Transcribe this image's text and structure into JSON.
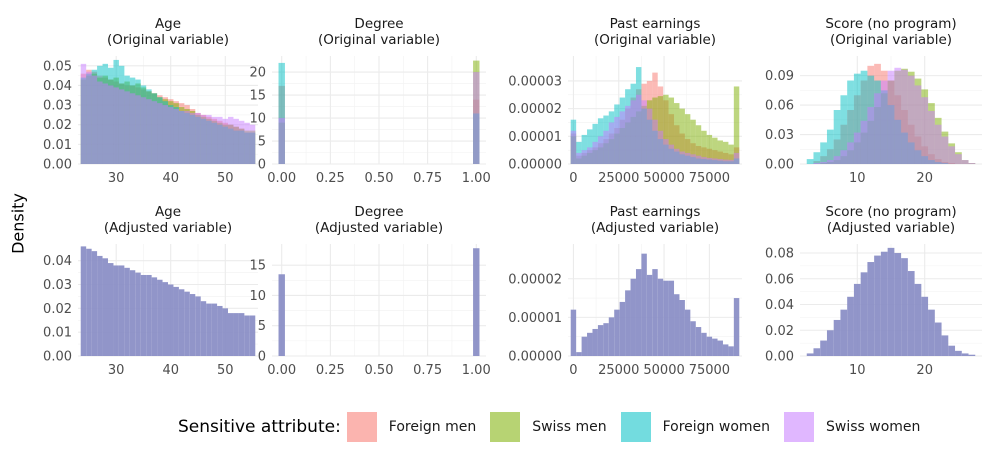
{
  "figure": {
    "ylabel": "Density",
    "legend": {
      "title": "Sensitive attribute:",
      "items": [
        {
          "label": "Foreign men",
          "color": "#F8766D"
        },
        {
          "label": "Swiss men",
          "color": "#7CAE00"
        },
        {
          "label": "Foreign women",
          "color": "#00BFC4"
        },
        {
          "label": "Swiss women",
          "color": "#C77CFF"
        }
      ]
    },
    "overlap_color": "#8B8FC6",
    "fill_opacity": 0.5
  },
  "chart_data": [
    {
      "type": "area",
      "title": "Age\n(Original variable)",
      "title_lines": [
        "Age",
        "(Original variable)"
      ],
      "xlim": [
        23,
        56
      ],
      "ylim": [
        0,
        0.055
      ],
      "xticks": [
        30,
        40,
        50
      ],
      "xtick_labels": [
        "30",
        "40",
        "50"
      ],
      "yticks": [
        0,
        0.01,
        0.02,
        0.03,
        0.04,
        0.05
      ],
      "ytick_labels": [
        "0.00",
        "0.01",
        "0.02",
        "0.03",
        "0.04",
        "0.05"
      ],
      "grid": true,
      "bins": [
        24,
        25,
        26,
        27,
        28,
        29,
        30,
        31,
        32,
        33,
        34,
        35,
        36,
        37,
        38,
        39,
        40,
        41,
        42,
        43,
        44,
        45,
        46,
        47,
        48,
        49,
        50,
        51,
        52,
        53,
        54,
        55
      ],
      "bin_width": 1,
      "series": [
        {
          "name": "Foreign men",
          "values": [
            0.046,
            0.048,
            0.047,
            0.045,
            0.044,
            0.043,
            0.042,
            0.041,
            0.04,
            0.04,
            0.039,
            0.038,
            0.037,
            0.036,
            0.035,
            0.034,
            0.033,
            0.032,
            0.031,
            0.03,
            0.028,
            0.026,
            0.025,
            0.024,
            0.023,
            0.022,
            0.021,
            0.02,
            0.019,
            0.018,
            0.016,
            0.016
          ]
        },
        {
          "name": "Swiss men",
          "values": [
            0.043,
            0.045,
            0.046,
            0.044,
            0.045,
            0.043,
            0.044,
            0.041,
            0.042,
            0.04,
            0.041,
            0.039,
            0.037,
            0.036,
            0.034,
            0.033,
            0.032,
            0.031,
            0.029,
            0.028,
            0.027,
            0.025,
            0.024,
            0.023,
            0.022,
            0.021,
            0.02,
            0.02,
            0.019,
            0.018,
            0.017,
            0.017
          ]
        },
        {
          "name": "Foreign women",
          "values": [
            0.044,
            0.046,
            0.048,
            0.05,
            0.051,
            0.049,
            0.053,
            0.05,
            0.045,
            0.044,
            0.043,
            0.04,
            0.038,
            0.036,
            0.034,
            0.032,
            0.03,
            0.029,
            0.027,
            0.026,
            0.025,
            0.024,
            0.023,
            0.022,
            0.021,
            0.02,
            0.019,
            0.018,
            0.017,
            0.017,
            0.016,
            0.016
          ]
        },
        {
          "name": "Swiss women",
          "values": [
            0.051,
            0.047,
            0.045,
            0.042,
            0.041,
            0.04,
            0.039,
            0.038,
            0.037,
            0.036,
            0.035,
            0.034,
            0.033,
            0.032,
            0.031,
            0.03,
            0.029,
            0.028,
            0.027,
            0.027,
            0.026,
            0.026,
            0.025,
            0.025,
            0.024,
            0.024,
            0.023,
            0.024,
            0.023,
            0.022,
            0.021,
            0.02
          ]
        }
      ]
    },
    {
      "type": "area",
      "title": "Degree\n(Original variable)",
      "title_lines": [
        "Degree",
        "(Original variable)"
      ],
      "xlim": [
        -0.05,
        1.05
      ],
      "ylim": [
        0,
        23.5
      ],
      "xticks": [
        0,
        0.25,
        0.5,
        0.75,
        1
      ],
      "xtick_labels": [
        "0.00",
        "0.25",
        "0.50",
        "0.75",
        "1.00"
      ],
      "yticks": [
        0,
        5,
        10,
        15,
        20
      ],
      "ytick_labels": [
        "0",
        "5",
        "10",
        "15",
        "20"
      ],
      "grid": true,
      "bins": [
        0,
        1
      ],
      "bin_width": 0.033,
      "series": [
        {
          "name": "Foreign men",
          "values": [
            17.0,
            14.0
          ]
        },
        {
          "name": "Swiss men",
          "values": [
            9.0,
            22.5
          ]
        },
        {
          "name": "Foreign women",
          "values": [
            22.0,
            11.0
          ]
        },
        {
          "name": "Swiss women",
          "values": [
            10.0,
            20.0
          ]
        }
      ]
    },
    {
      "type": "area",
      "title": "Past earnings\n(Original variable)",
      "title_lines": [
        "Past earnings",
        "(Original variable)"
      ],
      "xlim": [
        -3000,
        93000
      ],
      "ylim": [
        0,
        3.9e-05
      ],
      "xticks": [
        0,
        25000,
        50000,
        75000
      ],
      "xtick_labels": [
        "0",
        "25000",
        "50000",
        "75000"
      ],
      "yticks": [
        0,
        1e-05,
        2e-05,
        3e-05
      ],
      "ytick_labels": [
        "0.00000",
        "0.00001",
        "0.00002",
        "0.00003"
      ],
      "grid": true,
      "bins": [
        0,
        3000,
        6000,
        9000,
        12000,
        15000,
        18000,
        21000,
        24000,
        27000,
        30000,
        33000,
        36000,
        39000,
        42000,
        45000,
        48000,
        51000,
        54000,
        57000,
        60000,
        63000,
        66000,
        69000,
        72000,
        75000,
        78000,
        81000,
        84000,
        87000,
        90000
      ],
      "bin_width": 3000,
      "series": [
        {
          "name": "Foreign men",
          "values": [
            1.1e-05,
            3e-06,
            4e-06,
            5e-06,
            6e-06,
            7.5e-06,
            9e-06,
            1.1e-05,
            1.3e-05,
            1.6e-05,
            2e-05,
            2.4e-05,
            2.7e-05,
            2.9e-05,
            3e-05,
            3.3e-05,
            2.8e-05,
            2.3e-05,
            1.8e-05,
            1.4e-05,
            1.1e-05,
            9e-06,
            7.5e-06,
            6.5e-06,
            6e-06,
            5.5e-06,
            5e-06,
            4.5e-06,
            4e-06,
            3.5e-06,
            6e-06
          ]
        },
        {
          "name": "Swiss men",
          "values": [
            1e-05,
            2e-06,
            3e-06,
            4e-06,
            5e-06,
            6e-06,
            7.5e-06,
            9e-06,
            1.1e-05,
            1.3e-05,
            1.5e-05,
            1.7e-05,
            1.9e-05,
            2.1e-05,
            2.3e-05,
            2.4e-05,
            2.45e-05,
            2.5e-05,
            2.4e-05,
            2.2e-05,
            2e-05,
            1.8e-05,
            1.6e-05,
            1.4e-05,
            1.2e-05,
            1.05e-05,
            9.5e-06,
            8.5e-06,
            8e-06,
            7e-06,
            2.8e-05
          ]
        },
        {
          "name": "Foreign women",
          "values": [
            1.6e-05,
            8e-06,
            1.05e-05,
            1.25e-05,
            1.45e-05,
            1.65e-05,
            1.75e-05,
            1.9e-05,
            2.15e-05,
            2.4e-05,
            2.7e-05,
            2.9e-05,
            3.5e-05,
            2e-05,
            1.6e-05,
            1.2e-05,
            9e-06,
            7e-06,
            5.5e-06,
            4.5e-06,
            3.5e-06,
            3e-06,
            2.5e-06,
            2e-06,
            1.8e-06,
            1.6e-06,
            1.4e-06,
            1.2e-06,
            1e-06,
            1e-06,
            2e-06
          ]
        },
        {
          "name": "Swiss women",
          "values": [
            1.2e-05,
            4e-06,
            5e-06,
            6e-06,
            8e-06,
            1e-05,
            1.2e-05,
            1.5e-05,
            1.7e-05,
            1.9e-05,
            2.1e-05,
            2.3e-05,
            2.5e-05,
            2.3e-05,
            2e-05,
            1.6e-05,
            1.2e-05,
            9e-06,
            7e-06,
            5.5e-06,
            4.5e-06,
            4e-06,
            3.5e-06,
            3e-06,
            2.5e-06,
            2.2e-06,
            2e-06,
            1.8e-06,
            1.6e-06,
            1.5e-06,
            4e-06
          ]
        }
      ]
    },
    {
      "type": "area",
      "title": "Score (no program)\n(Original variable)",
      "title_lines": [
        "Score (no program)",
        "(Original variable)"
      ],
      "xlim": [
        1.5,
        28.5
      ],
      "ylim": [
        0,
        0.11
      ],
      "xticks": [
        10,
        20
      ],
      "xtick_labels": [
        "10",
        "20"
      ],
      "yticks": [
        0,
        0.03,
        0.06,
        0.09
      ],
      "ytick_labels": [
        "0.00",
        "0.03",
        "0.06",
        "0.09"
      ],
      "grid": true,
      "bins": [
        3,
        4,
        5,
        6,
        7,
        8,
        9,
        10,
        11,
        12,
        13,
        14,
        15,
        16,
        17,
        18,
        19,
        20,
        21,
        22,
        23,
        24,
        25,
        26,
        27
      ],
      "bin_width": 1,
      "series": [
        {
          "name": "Foreign men",
          "values": [
            0.0,
            0.003,
            0.008,
            0.015,
            0.025,
            0.04,
            0.055,
            0.07,
            0.085,
            0.1,
            0.102,
            0.095,
            0.085,
            0.07,
            0.055,
            0.04,
            0.028,
            0.018,
            0.01,
            0.005,
            0.002,
            0.001,
            0.0,
            0.0,
            0.0
          ]
        },
        {
          "name": "Swiss men",
          "values": [
            0.0,
            0.0,
            0.001,
            0.002,
            0.004,
            0.008,
            0.014,
            0.022,
            0.032,
            0.044,
            0.058,
            0.072,
            0.085,
            0.095,
            0.097,
            0.094,
            0.087,
            0.076,
            0.062,
            0.047,
            0.033,
            0.021,
            0.012,
            0.004,
            0.001
          ]
        },
        {
          "name": "Foreign women",
          "values": [
            0.005,
            0.012,
            0.022,
            0.035,
            0.055,
            0.07,
            0.085,
            0.092,
            0.095,
            0.09,
            0.085,
            0.075,
            0.06,
            0.045,
            0.032,
            0.022,
            0.014,
            0.008,
            0.004,
            0.002,
            0.001,
            0.0,
            0.0,
            0.0,
            0.0
          ]
        },
        {
          "name": "Swiss women",
          "values": [
            0.0,
            0.001,
            0.002,
            0.004,
            0.008,
            0.014,
            0.022,
            0.032,
            0.044,
            0.058,
            0.072,
            0.085,
            0.095,
            0.098,
            0.096,
            0.09,
            0.08,
            0.068,
            0.054,
            0.04,
            0.028,
            0.018,
            0.01,
            0.004,
            0.001
          ]
        }
      ]
    },
    {
      "type": "bar",
      "title": "Age\n(Adjusted variable)",
      "title_lines": [
        "Age",
        "(Adjusted variable)"
      ],
      "xlim": [
        23,
        56
      ],
      "ylim": [
        0,
        0.047
      ],
      "xticks": [
        30,
        40,
        50
      ],
      "xtick_labels": [
        "30",
        "40",
        "50"
      ],
      "yticks": [
        0,
        0.01,
        0.02,
        0.03,
        0.04
      ],
      "ytick_labels": [
        "0.00",
        "0.01",
        "0.02",
        "0.03",
        "0.04"
      ],
      "grid": true,
      "bins": [
        24,
        25,
        26,
        27,
        28,
        29,
        30,
        31,
        32,
        33,
        34,
        35,
        36,
        37,
        38,
        39,
        40,
        41,
        42,
        43,
        44,
        45,
        46,
        47,
        48,
        49,
        50,
        51,
        52,
        53,
        54,
        55
      ],
      "bin_width": 1,
      "series": [
        {
          "name": "",
          "values": [
            0.046,
            0.045,
            0.044,
            0.042,
            0.041,
            0.039,
            0.038,
            0.038,
            0.037,
            0.036,
            0.035,
            0.034,
            0.034,
            0.033,
            0.032,
            0.031,
            0.03,
            0.029,
            0.028,
            0.027,
            0.026,
            0.025,
            0.023,
            0.022,
            0.022,
            0.021,
            0.02,
            0.018,
            0.018,
            0.018,
            0.017,
            0.017
          ]
        }
      ]
    },
    {
      "type": "bar",
      "title": "Degree\n(Adjusted variable)",
      "title_lines": [
        "Degree",
        "(Adjusted variable)"
      ],
      "xlim": [
        -0.05,
        1.05
      ],
      "ylim": [
        0,
        18.5
      ],
      "xticks": [
        0,
        0.25,
        0.5,
        0.75,
        1
      ],
      "xtick_labels": [
        "0.00",
        "0.25",
        "0.50",
        "0.75",
        "1.00"
      ],
      "yticks": [
        0,
        5,
        10,
        15
      ],
      "ytick_labels": [
        "0",
        "5",
        "10",
        "15"
      ],
      "grid": true,
      "bins": [
        0,
        1
      ],
      "bin_width": 0.033,
      "series": [
        {
          "name": "",
          "values": [
            13.5,
            17.8
          ]
        }
      ]
    },
    {
      "type": "bar",
      "title": "Past earnings\n(Adjusted variable)",
      "title_lines": [
        "Past earnings",
        "(Adjusted variable)"
      ],
      "xlim": [
        -3000,
        93000
      ],
      "ylim": [
        0,
        2.9e-05
      ],
      "xticks": [
        0,
        25000,
        50000,
        75000
      ],
      "xtick_labels": [
        "0",
        "25000",
        "50000",
        "75000"
      ],
      "yticks": [
        0,
        1e-05,
        2e-05
      ],
      "ytick_labels": [
        "0.00000",
        "0.00001",
        "0.00002"
      ],
      "grid": true,
      "bins": [
        0,
        3000,
        6000,
        9000,
        12000,
        15000,
        18000,
        21000,
        24000,
        27000,
        30000,
        33000,
        36000,
        39000,
        42000,
        45000,
        48000,
        51000,
        54000,
        57000,
        60000,
        63000,
        66000,
        69000,
        72000,
        75000,
        78000,
        81000,
        84000,
        87000,
        90000
      ],
      "bin_width": 3000,
      "series": [
        {
          "name": "",
          "values": [
            1.2e-05,
            1e-06,
            5e-06,
            6e-06,
            7e-06,
            8e-06,
            8.5e-06,
            1e-05,
            1.2e-05,
            1.4e-05,
            1.7e-05,
            2e-05,
            2.25e-05,
            2.65e-05,
            2.1e-05,
            2.25e-05,
            2e-05,
            1.95e-05,
            1.95e-05,
            1.6e-05,
            1.45e-05,
            1.2e-05,
            9e-06,
            7.5e-06,
            6e-06,
            5e-06,
            4.5e-06,
            4e-06,
            3e-06,
            2.5e-06,
            1.5e-05
          ]
        }
      ]
    },
    {
      "type": "bar",
      "title": "Score (no program)\n(Adjusted variable)",
      "title_lines": [
        "Score (no program)",
        "(Adjusted variable)"
      ],
      "xlim": [
        1.5,
        28.5
      ],
      "ylim": [
        0,
        0.087
      ],
      "xticks": [
        10,
        20
      ],
      "xtick_labels": [
        "10",
        "20"
      ],
      "yticks": [
        0,
        0.02,
        0.04,
        0.06,
        0.08
      ],
      "ytick_labels": [
        "0.00",
        "0.02",
        "0.04",
        "0.06",
        "0.08"
      ],
      "grid": true,
      "bins": [
        3,
        4,
        5,
        6,
        7,
        8,
        9,
        10,
        11,
        12,
        13,
        14,
        15,
        16,
        17,
        18,
        19,
        20,
        21,
        22,
        23,
        24,
        25,
        26,
        27
      ],
      "bin_width": 1,
      "series": [
        {
          "name": "",
          "values": [
            0.002,
            0.006,
            0.012,
            0.02,
            0.028,
            0.036,
            0.046,
            0.056,
            0.065,
            0.073,
            0.078,
            0.081,
            0.084,
            0.08,
            0.076,
            0.066,
            0.056,
            0.046,
            0.036,
            0.026,
            0.016,
            0.008,
            0.004,
            0.002,
            0.001
          ]
        }
      ]
    }
  ]
}
